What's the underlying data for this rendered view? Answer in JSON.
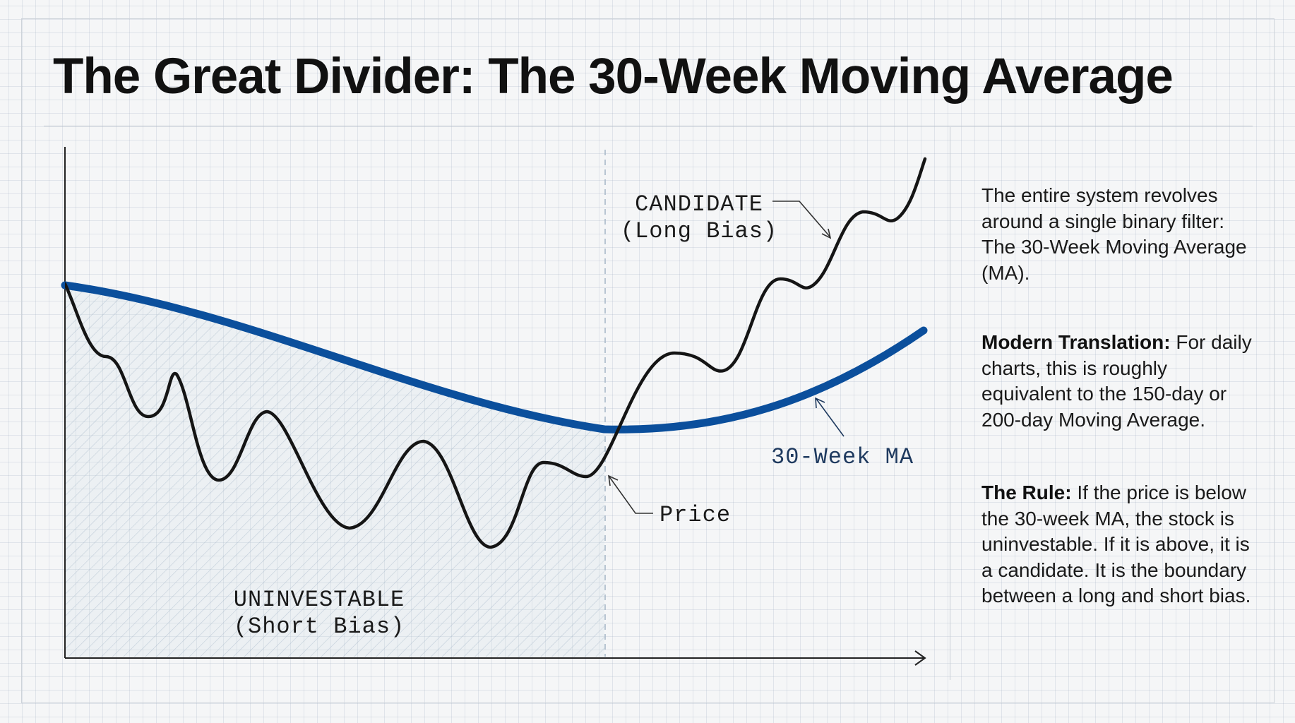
{
  "title": "The Great Divider: The 30-Week Moving Average",
  "diagram": {
    "candidate_label_line1": "CANDIDATE",
    "candidate_label_line2": "(Long Bias)",
    "uninvestable_label_line1": "UNINVESTABLE",
    "uninvestable_label_line2": "(Short Bias)",
    "ma_label": "30-Week MA",
    "price_label": "Price"
  },
  "sidebar": {
    "intro": "The entire system revolves around a single binary filter: The 30-Week Moving Average (MA).",
    "modern_heading": "Modern Translation:",
    "modern_body": "For daily charts, this is roughly equivalent to the 150-day or 200-day Moving Average.",
    "rule_heading": "The Rule:",
    "rule_body": "If the price is below the 30-week MA, the stock is uninvestable. If it is above, it is a candidate. It is the boundary between a long and short bias."
  },
  "colors": {
    "ma_line": "#0b4f9c",
    "price_line": "#151515",
    "hatch": "#93a7bd",
    "text": "#1a1a1a"
  }
}
